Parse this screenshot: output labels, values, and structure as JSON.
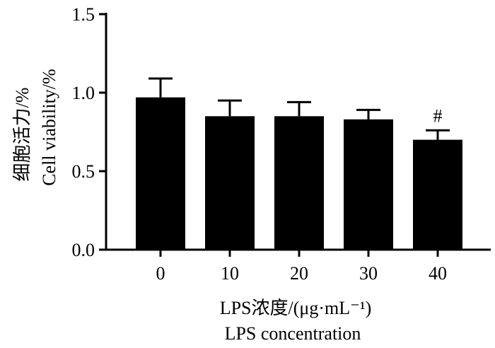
{
  "chart_data": {
    "type": "bar",
    "categories": [
      "0",
      "10",
      "20",
      "30",
      "40"
    ],
    "values": [
      0.97,
      0.85,
      0.85,
      0.83,
      0.7
    ],
    "errors": [
      0.12,
      0.1,
      0.09,
      0.06,
      0.06
    ],
    "annotations": [
      "",
      "",
      "",
      "",
      "#"
    ],
    "ylim": [
      0,
      1.5
    ],
    "yticks": [
      "0.0",
      "0.5",
      "1.0",
      "1.5"
    ],
    "ylabel_cn": "细胞活力/%",
    "ylabel_en": "Cell viability/%",
    "xlabel_cn": "LPS浓度/(μg·mL⁻¹)",
    "xlabel_en": "LPS concentration",
    "bar_color": "#000000",
    "grid": false,
    "legend": "none"
  }
}
